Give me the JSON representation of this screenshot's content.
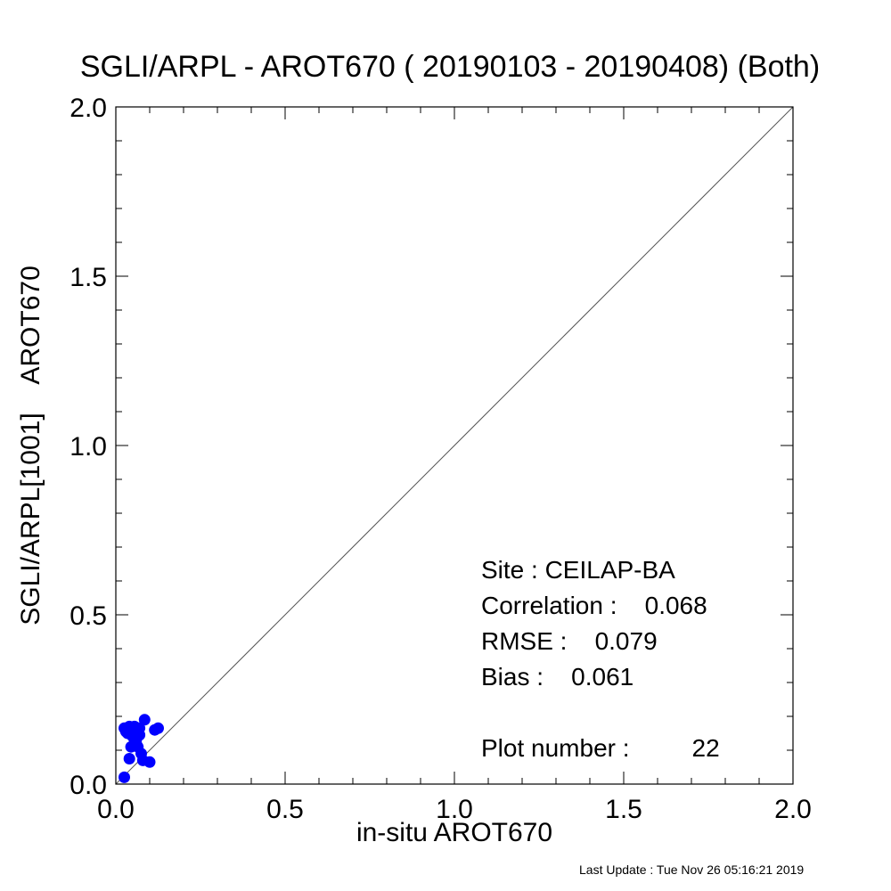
{
  "chart_data": {
    "type": "scatter",
    "title": "SGLI/ARPL - AROT670 ( 20190103 - 20190408) (Both)",
    "xlabel": "in-situ AROT670",
    "ylabel": "SGLI/ARPL[1001]    AROT670",
    "xlim": [
      0.0,
      2.0
    ],
    "ylim": [
      0.0,
      2.0
    ],
    "x_tick_labels": [
      "0.0",
      "0.5",
      "1.0",
      "1.5",
      "2.0"
    ],
    "y_tick_labels": [
      "0.0",
      "0.5",
      "1.0",
      "1.5",
      "2.0"
    ],
    "grid": false,
    "reference_line": "1:1",
    "point_color": "#0000ff",
    "points": [
      {
        "x": 0.025,
        "y": 0.02
      },
      {
        "x": 0.025,
        "y": 0.165
      },
      {
        "x": 0.03,
        "y": 0.155
      },
      {
        "x": 0.04,
        "y": 0.17
      },
      {
        "x": 0.045,
        "y": 0.16
      },
      {
        "x": 0.04,
        "y": 0.075
      },
      {
        "x": 0.045,
        "y": 0.11
      },
      {
        "x": 0.05,
        "y": 0.14
      },
      {
        "x": 0.055,
        "y": 0.165
      },
      {
        "x": 0.06,
        "y": 0.13
      },
      {
        "x": 0.065,
        "y": 0.11
      },
      {
        "x": 0.07,
        "y": 0.165
      },
      {
        "x": 0.075,
        "y": 0.09
      },
      {
        "x": 0.08,
        "y": 0.07
      },
      {
        "x": 0.085,
        "y": 0.19
      },
      {
        "x": 0.1,
        "y": 0.065
      },
      {
        "x": 0.115,
        "y": 0.16
      },
      {
        "x": 0.125,
        "y": 0.165
      },
      {
        "x": 0.06,
        "y": 0.12
      },
      {
        "x": 0.035,
        "y": 0.15
      },
      {
        "x": 0.055,
        "y": 0.17
      },
      {
        "x": 0.07,
        "y": 0.145
      }
    ]
  },
  "stats": {
    "site": "Site : CEILAP-BA",
    "correlation": "Correlation :    0.068",
    "rmse": "RMSE :    0.079",
    "bias": "Bias :    0.061",
    "plot_number": "Plot number :         22"
  },
  "footer": "Last Update : Tue Nov 26 05:16:21 2019"
}
